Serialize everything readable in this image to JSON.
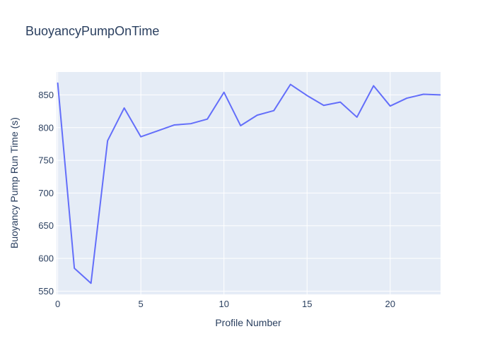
{
  "page": {
    "background": "#ffffff"
  },
  "chart_data": {
    "type": "line",
    "title": "BuoyancyPumpOnTime",
    "xlabel": "Profile Number",
    "ylabel": "Buoyancy Pump Run Time (s)",
    "x": [
      0,
      1,
      2,
      3,
      4,
      5,
      6,
      7,
      8,
      9,
      10,
      11,
      12,
      13,
      14,
      15,
      16,
      17,
      18,
      19,
      20,
      21,
      22,
      23
    ],
    "values": [
      868,
      585,
      562,
      780,
      830,
      786,
      795,
      804,
      806,
      813,
      854,
      803,
      819,
      826,
      866,
      849,
      834,
      839,
      816,
      864,
      833,
      845,
      851,
      850
    ],
    "xticks": [
      0,
      5,
      10,
      15,
      20
    ],
    "yticks": [
      550,
      600,
      650,
      700,
      750,
      800,
      850
    ],
    "xlim": [
      -0.07,
      23.03
    ],
    "ylim": [
      545,
      885
    ],
    "grid": true,
    "legend": "none",
    "colors": {
      "line": "#636efa",
      "plot_background": "#e5ecf6",
      "grid": "#ffffff",
      "text": "#2a3f5f",
      "page_background": "#ffffff"
    }
  }
}
